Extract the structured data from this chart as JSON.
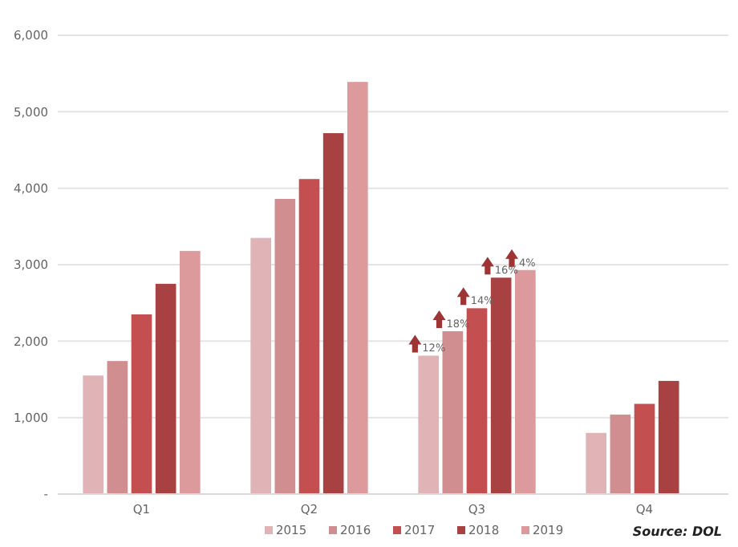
{
  "chart_data": {
    "type": "bar",
    "categories": [
      "Q1",
      "Q2",
      "Q3",
      "Q4"
    ],
    "series": [
      {
        "name": "2015",
        "color": "#e0b4b6",
        "values": [
          1550,
          3350,
          1810,
          800
        ]
      },
      {
        "name": "2016",
        "color": "#d08e90",
        "values": [
          1740,
          3860,
          2130,
          1040
        ]
      },
      {
        "name": "2017",
        "color": "#c44f50",
        "values": [
          2350,
          4120,
          2430,
          1180
        ]
      },
      {
        "name": "2018",
        "color": "#a84242",
        "values": [
          2750,
          4720,
          2830,
          1480
        ]
      },
      {
        "name": "2019",
        "color": "#dc9a9c",
        "values": [
          3180,
          5390,
          2930,
          null
        ]
      }
    ],
    "ylim": [
      0,
      6000
    ],
    "yticks": [
      {
        "value": 0,
        "label": "-"
      },
      {
        "value": 1000,
        "label": "1,000"
      },
      {
        "value": 2000,
        "label": "2,000"
      },
      {
        "value": 3000,
        "label": "3,000"
      },
      {
        "value": 4000,
        "label": "4,000"
      },
      {
        "value": 5000,
        "label": "5,000"
      },
      {
        "value": 6000,
        "label": "6,000"
      }
    ],
    "grid": "y",
    "legend": "bottom",
    "annotations": [
      "12%",
      "18%",
      "14%",
      "16%",
      "4%",
      "Source: DOL"
    ]
  }
}
